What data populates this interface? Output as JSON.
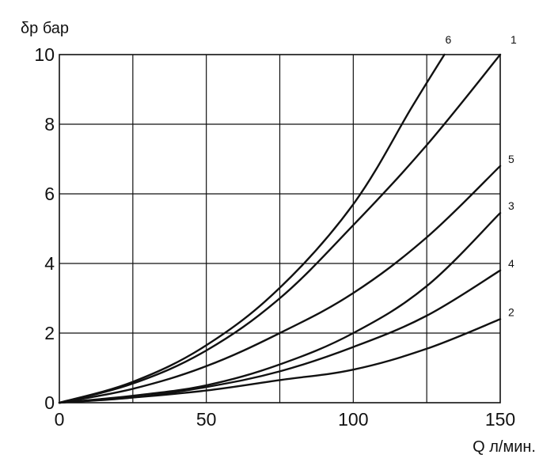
{
  "chart_data": {
    "type": "line",
    "ylabel": "δp бар",
    "xlabel": "Q л/мин.",
    "xlim": [
      0,
      150
    ],
    "ylim": [
      0,
      10
    ],
    "grid": true,
    "legend": "none",
    "x_ticks": [
      "0",
      "50",
      "100",
      "150"
    ],
    "y_ticks": [
      "0",
      "2",
      "4",
      "6",
      "8",
      "10"
    ],
    "x": [
      0,
      25,
      50,
      75,
      100,
      125,
      150
    ],
    "series": [
      {
        "name": "1",
        "values": [
          0,
          0.55,
          1.5,
          3.0,
          5.1,
          7.4,
          10.0
        ]
      },
      {
        "name": "2",
        "values": [
          0,
          0.15,
          0.35,
          0.65,
          0.95,
          1.55,
          2.4
        ]
      },
      {
        "name": "3",
        "values": [
          0,
          0.2,
          0.5,
          1.1,
          2.0,
          3.35,
          5.45
        ]
      },
      {
        "name": "4",
        "values": [
          0,
          0.15,
          0.45,
          0.9,
          1.6,
          2.5,
          3.8
        ]
      },
      {
        "name": "5",
        "values": [
          0,
          0.4,
          1.05,
          2.0,
          3.15,
          4.75,
          6.8
        ]
      },
      {
        "name": "6",
        "x": [
          0,
          25,
          50,
          75,
          100,
          120,
          131
        ],
        "values": [
          0,
          0.6,
          1.65,
          3.3,
          5.7,
          8.5,
          10.0
        ]
      }
    ]
  },
  "style": {
    "line_color": "#111111",
    "grid_color": "#111111",
    "background": "#ffffff"
  }
}
